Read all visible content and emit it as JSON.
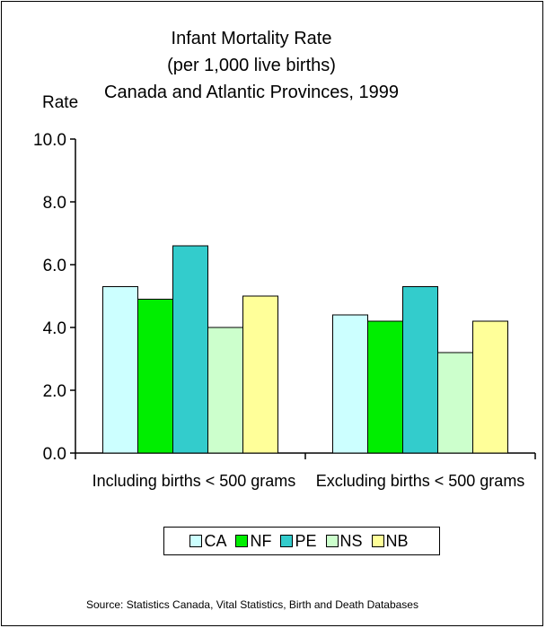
{
  "chart_data": {
    "type": "bar",
    "title_lines": [
      "Infant Mortality Rate",
      "(per 1,000 live births)",
      "Canada and Atlantic Provinces, 1999"
    ],
    "ylabel": "Rate",
    "xlabel": "",
    "ylim": [
      0,
      10
    ],
    "yticks": [
      "0.0",
      "2.0",
      "4.0",
      "6.0",
      "8.0",
      "10.0"
    ],
    "categories": [
      "Including births < 500 grams",
      "Excluding births < 500 grams"
    ],
    "series": [
      {
        "name": "CA",
        "color": "#ccffff",
        "values": [
          5.3,
          4.4
        ]
      },
      {
        "name": "NF",
        "color": "#00ee00",
        "values": [
          4.9,
          4.2
        ]
      },
      {
        "name": "PE",
        "color": "#33cccc",
        "values": [
          6.6,
          5.3
        ]
      },
      {
        "name": "NS",
        "color": "#ccffcc",
        "values": [
          4.0,
          3.2
        ]
      },
      {
        "name": "NB",
        "color": "#ffff99",
        "values": [
          5.0,
          4.2
        ]
      }
    ],
    "legend_position": "bottom",
    "grid": false
  },
  "source": "Source:  Statistics Canada, Vital Statistics, Birth and Death Databases"
}
